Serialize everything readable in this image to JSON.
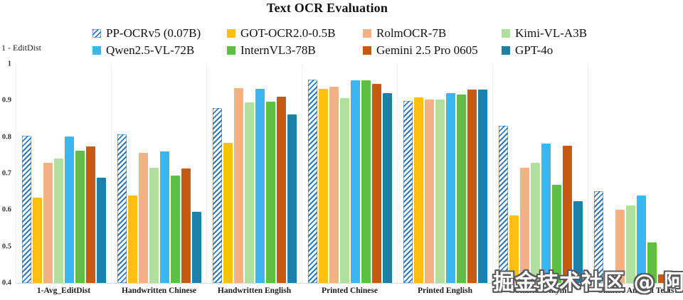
{
  "title": "Text OCR Evaluation",
  "y_axis": {
    "label": "1 - EditDist"
  },
  "watermark": "掘金技术社区 @ 阿杆",
  "chart_data": {
    "type": "bar",
    "title": "Text OCR Evaluation",
    "xlabel": "",
    "ylabel": "1 - EditDist",
    "ylim": [
      0.4,
      1.0
    ],
    "ytick_values": [
      1.0,
      0.9,
      0.8,
      0.7,
      0.6,
      0.5,
      0.4
    ],
    "ytick_labels": [
      "1",
      "0.9",
      "0.8",
      "0.7",
      "0.6",
      "0.5",
      "0.4"
    ],
    "grid": false,
    "legend_position": "top",
    "categories": [
      "1-Avg_EditDist",
      "Handwritten Chinese",
      "Handwritten English",
      "Printed Chinese",
      "Printed English",
      "Chinese Pinyin",
      "Chinese Ancient Texts"
    ],
    "series": [
      {
        "name": "PP-OCRv5 (0.07B)",
        "color": "#2E79BE",
        "hatch": true,
        "values": [
          0.804,
          0.808,
          0.879,
          0.957,
          0.898,
          0.83,
          0.652
        ]
      },
      {
        "name": "GOT-OCR2.0-0.5B",
        "color": "#FFC013",
        "hatch": false,
        "values": [
          0.634,
          0.64,
          0.784,
          0.932,
          0.909,
          0.585,
          null
        ]
      },
      {
        "name": "RolmOCR-7B",
        "color": "#F4B183",
        "hatch": false,
        "values": [
          0.729,
          0.757,
          0.934,
          0.938,
          0.903,
          0.716,
          0.601
        ]
      },
      {
        "name": "Kimi-VL-A3B",
        "color": "#B0DF9E",
        "hatch": false,
        "values": [
          0.741,
          0.716,
          0.894,
          0.906,
          0.903,
          0.73,
          0.613
        ]
      },
      {
        "name": "Qwen2.5-VL-72B",
        "color": "#3AB7F0",
        "hatch": false,
        "values": [
          0.801,
          0.761,
          0.932,
          0.955,
          0.92,
          0.782,
          0.639
        ]
      },
      {
        "name": "InternVL3-78B",
        "color": "#5EC043",
        "hatch": false,
        "values": [
          0.763,
          0.695,
          0.897,
          0.955,
          0.916,
          0.668,
          0.511
        ]
      },
      {
        "name": "Gemini 2.5 Pro 0605",
        "color": "#C55A11",
        "hatch": false,
        "values": [
          0.775,
          0.713,
          0.91,
          0.945,
          0.93,
          0.776,
          0.424
        ]
      },
      {
        "name": "GPT-4o",
        "color": "#1E7FA8",
        "hatch": false,
        "values": [
          0.688,
          0.594,
          0.862,
          0.921,
          0.93,
          0.625,
          null
        ]
      }
    ]
  }
}
